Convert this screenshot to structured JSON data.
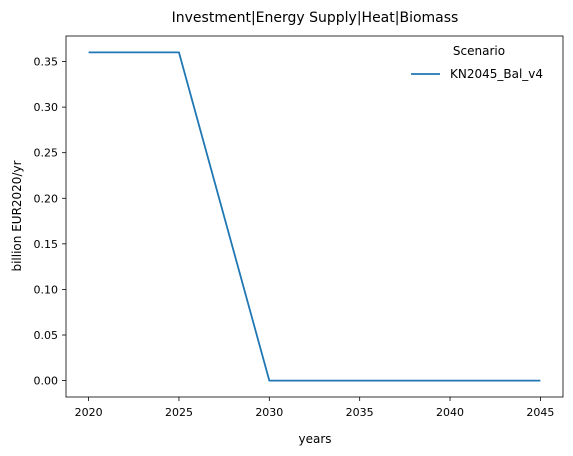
{
  "chart_data": {
    "type": "line",
    "title": "Investment|Energy Supply|Heat|Biomass",
    "xlabel": "years",
    "ylabel": "billion EUR2020/yr",
    "x": [
      2020,
      2025,
      2030,
      2035,
      2040,
      2045
    ],
    "xlim": [
      2018.75,
      2046.25
    ],
    "ylim": [
      -0.018,
      0.378
    ],
    "xticks": [
      "2020",
      "2025",
      "2030",
      "2035",
      "2040",
      "2045"
    ],
    "yticks": [
      "0.00",
      "0.05",
      "0.10",
      "0.15",
      "0.20",
      "0.25",
      "0.30",
      "0.35"
    ],
    "grid": false,
    "legend": {
      "title": "Scenario",
      "placement": "top-right"
    },
    "series": [
      {
        "name": "KN2045_Bal_v4",
        "color": "#1f77b4",
        "values": [
          0.36,
          0.36,
          0.0,
          0.0,
          0.0,
          0.0
        ]
      }
    ]
  }
}
